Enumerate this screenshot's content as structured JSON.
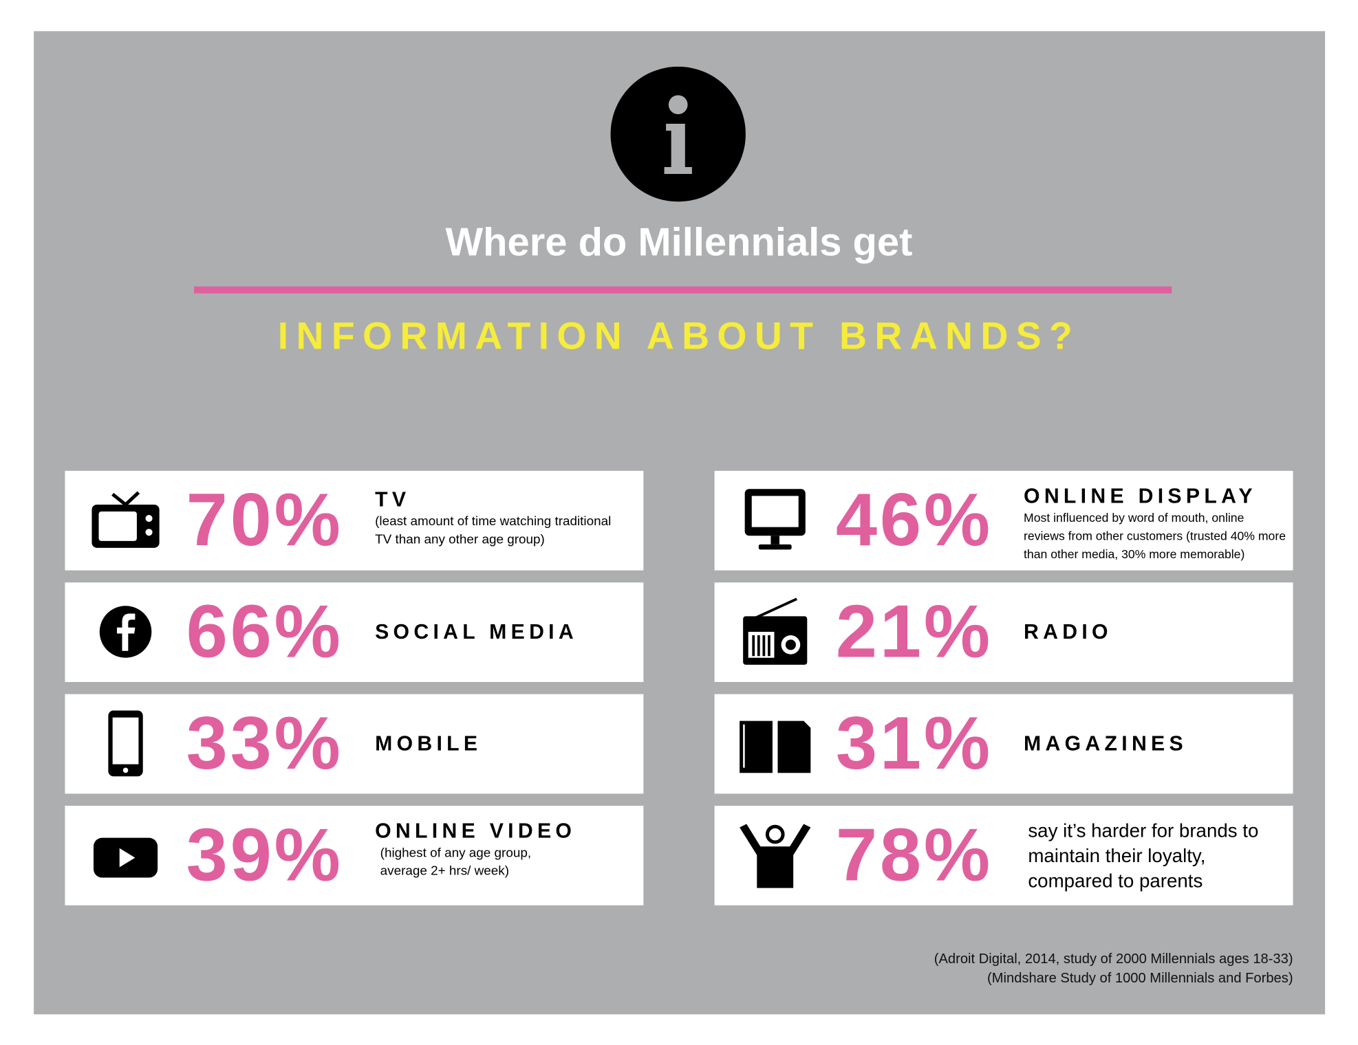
{
  "header": {
    "title": "Where do Millennials get",
    "subtitle": "INFORMATION ABOUT BRANDS?"
  },
  "cards": [
    {
      "percent": "70%",
      "label": "TV",
      "note": "(least amount of time watching traditional TV than any other age group)"
    },
    {
      "percent": "46%",
      "label": "ONLINE DISPLAY",
      "note": "Most influenced by word of mouth, online reviews from other customers (trusted 40% more than other media, 30% more memorable)"
    },
    {
      "percent": "66%",
      "label": "SOCIAL MEDIA"
    },
    {
      "percent": "21%",
      "label": "RADIO"
    },
    {
      "percent": "33%",
      "label": "MOBILE"
    },
    {
      "percent": "31%",
      "label": "MAGAZINES"
    },
    {
      "percent": "39%",
      "label": "ONLINE VIDEO",
      "note": "(highest of any age group, average 2+ hrs/ week)"
    },
    {
      "percent": "78%",
      "text": "say it’s harder for brands to maintain their loyalty, compared to parents"
    }
  ],
  "sources": [
    "(Adroit Digital, 2014, study of 2000 Millennials ages 18-33)",
    "(Mindshare Study of 1000 Millennials and Forbes)"
  ]
}
